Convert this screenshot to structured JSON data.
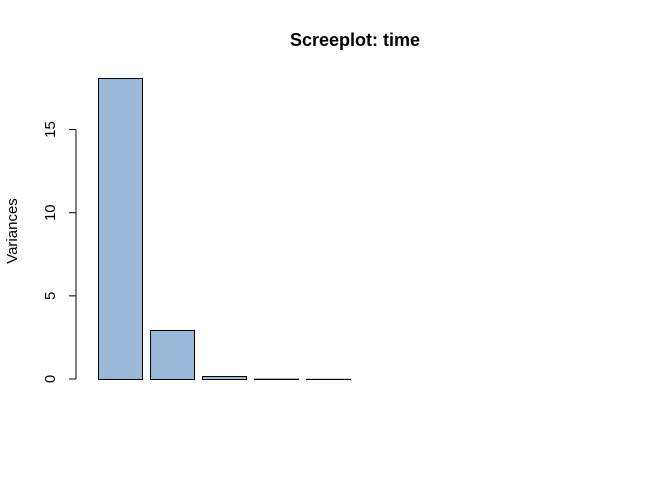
{
  "chart_data": {
    "type": "bar",
    "title": "Screeplot: time",
    "xlabel": "",
    "ylabel": "Variances",
    "ylim": [
      0,
      18.1
    ],
    "yticks": [
      0,
      5,
      10,
      15
    ],
    "categories": [
      "",
      "",
      "",
      "",
      "",
      "",
      "",
      "",
      "",
      ""
    ],
    "values": [
      18.1,
      2.95,
      0.18,
      0.02,
      0.01,
      0.0,
      0.0,
      0.0,
      0.0,
      0.0
    ],
    "bar_color": "#9AB9D8",
    "bar_border_color": "#000000",
    "grid": false,
    "legend": "none"
  }
}
